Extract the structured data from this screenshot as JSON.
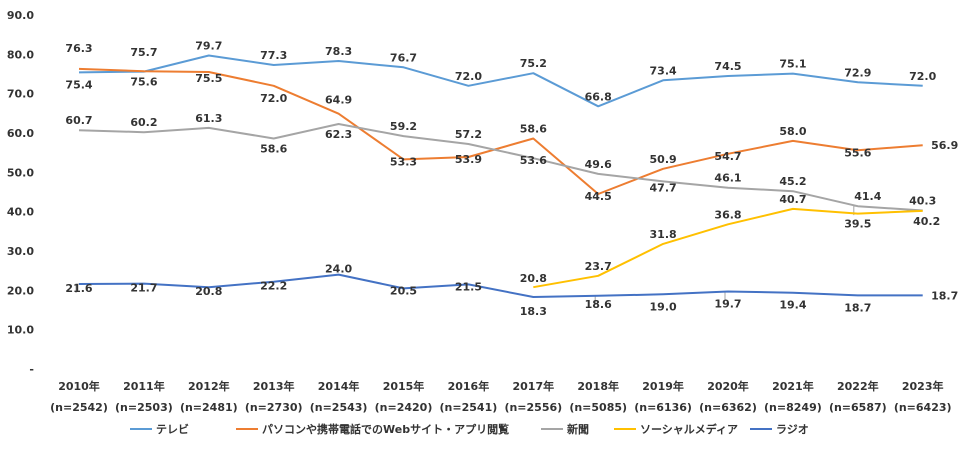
{
  "chart_data": {
    "type": "line",
    "categories": [
      "2010年",
      "2011年",
      "2012年",
      "2013年",
      "2014年",
      "2015年",
      "2016年",
      "2017年",
      "2018年",
      "2019年",
      "2020年",
      "2021年",
      "2022年",
      "2023年"
    ],
    "sample_sizes": [
      "(n=2542)",
      "(n=2503)",
      "(n=2481)",
      "(n=2730)",
      "(n=2543)",
      "(n=2420)",
      "(n=2541)",
      "(n=2556)",
      "(n=5085)",
      "(n=6136)",
      "(n=6362)",
      "(n=8249)",
      "(n=6587)",
      "(n=6423)"
    ],
    "ylim": [
      0,
      90
    ],
    "yticks": [
      {
        "value": 90,
        "label": "90.0"
      },
      {
        "value": 80,
        "label": "80.0"
      },
      {
        "value": 70,
        "label": "70.0"
      },
      {
        "value": 60,
        "label": "60.0"
      },
      {
        "value": 50,
        "label": "50.0"
      },
      {
        "value": 40,
        "label": "40.0"
      },
      {
        "value": 30,
        "label": "30.0"
      },
      {
        "value": 20,
        "label": "20.0"
      },
      {
        "value": 10,
        "label": "10.0"
      },
      {
        "value": 0,
        "label": "-"
      }
    ],
    "legend_position": "bottom",
    "series": [
      {
        "name": "テレビ",
        "color": "#5B9BD5",
        "values": [
          75.4,
          75.6,
          79.7,
          77.3,
          78.3,
          76.7,
          72.0,
          75.2,
          66.8,
          73.4,
          74.5,
          75.1,
          72.9,
          72.0
        ]
      },
      {
        "name": "パソコンや携帯電話でのWebサイト・アプリ閲覧",
        "color": "#ED7D31",
        "values": [
          76.3,
          75.7,
          75.5,
          72.0,
          64.9,
          53.3,
          53.9,
          58.6,
          44.5,
          50.9,
          54.7,
          58.0,
          55.6,
          56.9
        ]
      },
      {
        "name": "新聞",
        "color": "#A5A5A5",
        "values": [
          60.7,
          60.2,
          61.3,
          58.6,
          62.3,
          59.2,
          57.2,
          53.6,
          49.6,
          47.7,
          46.1,
          45.2,
          41.4,
          40.3
        ]
      },
      {
        "name": "ソーシャルメディア",
        "color": "#FFC000",
        "values": [
          null,
          null,
          null,
          null,
          null,
          null,
          null,
          20.8,
          23.7,
          31.8,
          36.8,
          40.7,
          39.5,
          40.2
        ]
      },
      {
        "name": "ラジオ",
        "color": "#4472C4",
        "values": [
          21.6,
          21.7,
          20.8,
          22.2,
          24.0,
          20.5,
          21.5,
          18.3,
          18.6,
          19.0,
          19.7,
          19.4,
          18.7,
          18.7
        ]
      }
    ]
  }
}
